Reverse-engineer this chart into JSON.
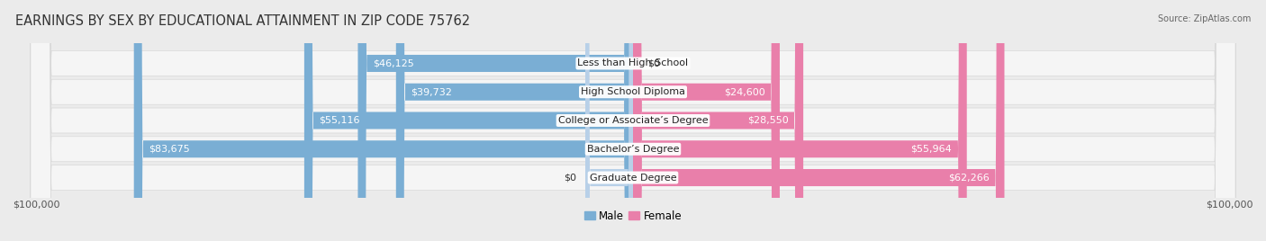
{
  "title": "EARNINGS BY SEX BY EDUCATIONAL ATTAINMENT IN ZIP CODE 75762",
  "source": "Source: ZipAtlas.com",
  "categories": [
    "Less than High School",
    "High School Diploma",
    "College or Associate’s Degree",
    "Bachelor’s Degree",
    "Graduate Degree"
  ],
  "male_values": [
    46125,
    39732,
    55116,
    83675,
    0
  ],
  "female_values": [
    0,
    24600,
    28550,
    55964,
    62266
  ],
  "grad_male_stub": 8000,
  "male_color": "#7aaed4",
  "female_color": "#e97faa",
  "male_stub_color": "#b8d0e8",
  "axis_max": 100000,
  "bg_color": "#ebebeb",
  "row_bg_color": "#f5f5f5",
  "row_border_color": "#d8d8d8",
  "title_fontsize": 10.5,
  "label_fontsize": 8.0,
  "tick_fontsize": 8.0,
  "legend_fontsize": 8.5
}
